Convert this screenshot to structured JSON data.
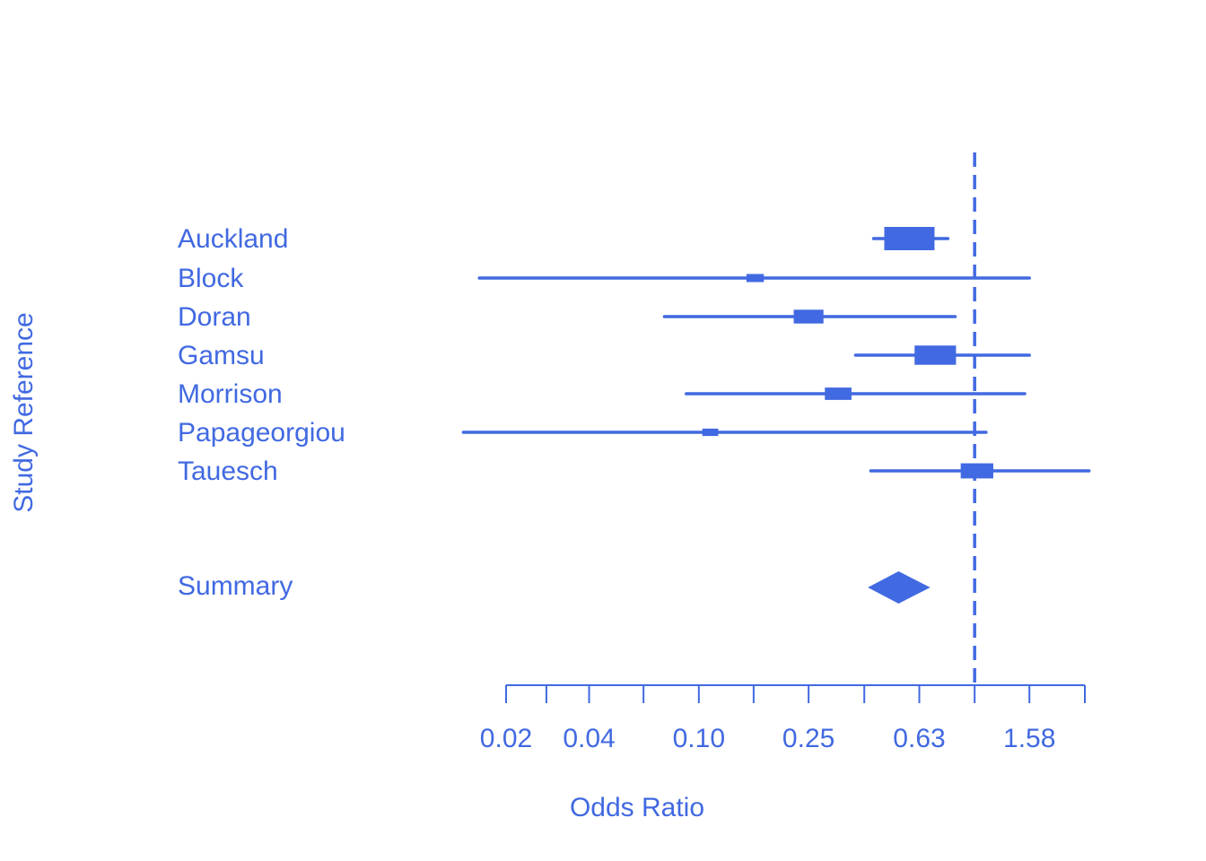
{
  "chart_data": {
    "type": "forest",
    "xlabel": "Odds Ratio",
    "ylabel": "Study Reference",
    "x_scale": "log",
    "x_ticks": [
      0.02,
      0.028,
      0.04,
      0.063,
      0.1,
      0.158,
      0.25,
      0.398,
      0.63,
      1,
      1.58,
      2.51
    ],
    "x_tick_labels": [
      "0.02",
      "",
      "0.04",
      "",
      "0.10",
      "",
      "0.25",
      "",
      "0.63",
      "",
      "1.58",
      ""
    ],
    "reference_line": 1.0,
    "color": "#4169e1",
    "studies": [
      {
        "name": "Auckland",
        "or": 0.58,
        "lower": 0.43,
        "upper": 0.8,
        "weight": 1.0
      },
      {
        "name": "Block",
        "or": 0.16,
        "lower": 0.016,
        "upper": 1.58,
        "weight": 0.12
      },
      {
        "name": "Doran",
        "or": 0.25,
        "lower": 0.075,
        "upper": 0.85,
        "weight": 0.35
      },
      {
        "name": "Gamsu",
        "or": 0.72,
        "lower": 0.37,
        "upper": 1.58,
        "weight": 0.68
      },
      {
        "name": "Morrison",
        "or": 0.32,
        "lower": 0.09,
        "upper": 1.52,
        "weight": 0.28
      },
      {
        "name": "Papageorgiou",
        "or": 0.11,
        "lower": 0.014,
        "upper": 1.1,
        "weight": 0.1
      },
      {
        "name": "Tauesch",
        "or": 1.02,
        "lower": 0.42,
        "upper": 2.6,
        "weight": 0.42
      }
    ],
    "summary": {
      "name": "Summary",
      "or": 0.53,
      "lower": 0.41,
      "upper": 0.69
    }
  }
}
